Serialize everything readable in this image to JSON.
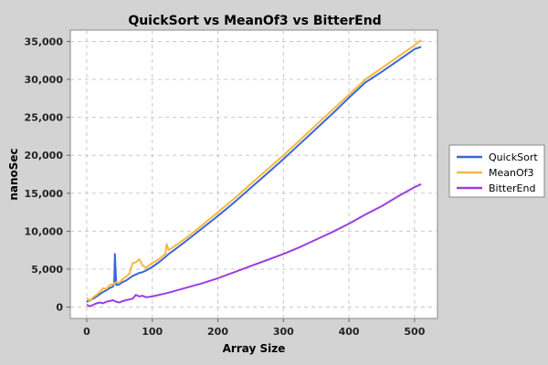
{
  "chart_data": {
    "type": "line",
    "title": "QuickSort vs MeanOf3 vs BitterEnd",
    "xlabel": "Array Size",
    "ylabel": "nanoSec",
    "xlim": [
      -25,
      535
    ],
    "ylim": [
      -1500,
      36500
    ],
    "xticks": [
      0,
      100,
      200,
      300,
      400,
      500
    ],
    "yticks": [
      0,
      5000,
      10000,
      15000,
      20000,
      25000,
      30000,
      35000
    ],
    "xtick_labels": [
      "0",
      "100",
      "200",
      "300",
      "400",
      "500"
    ],
    "ytick_labels": [
      "0",
      "5,000",
      "10,000",
      "15,000",
      "20,000",
      "25,000",
      "30,000",
      "35,000"
    ],
    "grid": true,
    "legend_position": "right",
    "series": [
      {
        "name": "QuickSort",
        "color": "#3a66d6",
        "x": [
          0,
          5,
          10,
          15,
          20,
          25,
          30,
          35,
          40,
          42,
          43,
          45,
          50,
          55,
          60,
          65,
          70,
          75,
          80,
          85,
          90,
          100,
          110,
          120,
          125,
          130,
          150,
          175,
          200,
          225,
          250,
          275,
          300,
          325,
          350,
          375,
          400,
          425,
          450,
          475,
          500,
          510
        ],
        "y": [
          700,
          900,
          1100,
          1400,
          1700,
          2000,
          2200,
          2500,
          2700,
          3200,
          7000,
          2900,
          3000,
          3300,
          3500,
          3800,
          4100,
          4300,
          4500,
          4600,
          4800,
          5300,
          5900,
          6600,
          7000,
          7300,
          8600,
          10300,
          12000,
          13800,
          15700,
          17600,
          19500,
          21500,
          23500,
          25500,
          27600,
          29600,
          31000,
          32500,
          34000,
          34300
        ]
      },
      {
        "name": "MeanOf3",
        "color": "#f5b840",
        "x": [
          0,
          5,
          10,
          15,
          20,
          25,
          30,
          35,
          40,
          45,
          50,
          55,
          60,
          65,
          70,
          75,
          80,
          85,
          90,
          100,
          110,
          120,
          122,
          125,
          130,
          150,
          175,
          200,
          225,
          250,
          275,
          300,
          325,
          350,
          375,
          400,
          425,
          450,
          475,
          500,
          510
        ],
        "y": [
          1200,
          800,
          1300,
          1600,
          2000,
          2500,
          2400,
          2900,
          3000,
          3300,
          3200,
          3700,
          4000,
          4400,
          5800,
          5900,
          6300,
          5500,
          5200,
          5800,
          6300,
          7000,
          8300,
          7500,
          7800,
          9000,
          10700,
          12500,
          14300,
          16200,
          18100,
          20000,
          22000,
          24000,
          26000,
          28000,
          30000,
          31500,
          33000,
          34500,
          35200
        ]
      },
      {
        "name": "BitterEnd",
        "color": "#9b3fe0",
        "x": [
          0,
          5,
          10,
          15,
          20,
          25,
          30,
          35,
          40,
          45,
          50,
          55,
          60,
          65,
          70,
          75,
          80,
          85,
          90,
          100,
          125,
          150,
          175,
          200,
          225,
          250,
          275,
          300,
          325,
          350,
          375,
          400,
          425,
          450,
          475,
          500,
          510
        ],
        "y": [
          300,
          100,
          300,
          500,
          600,
          500,
          700,
          800,
          900,
          700,
          600,
          800,
          900,
          1000,
          1100,
          1600,
          1400,
          1500,
          1300,
          1400,
          1900,
          2500,
          3100,
          3800,
          4600,
          5400,
          6200,
          7000,
          7900,
          8900,
          9900,
          11000,
          12200,
          13300,
          14600,
          15800,
          16200
        ]
      }
    ]
  }
}
